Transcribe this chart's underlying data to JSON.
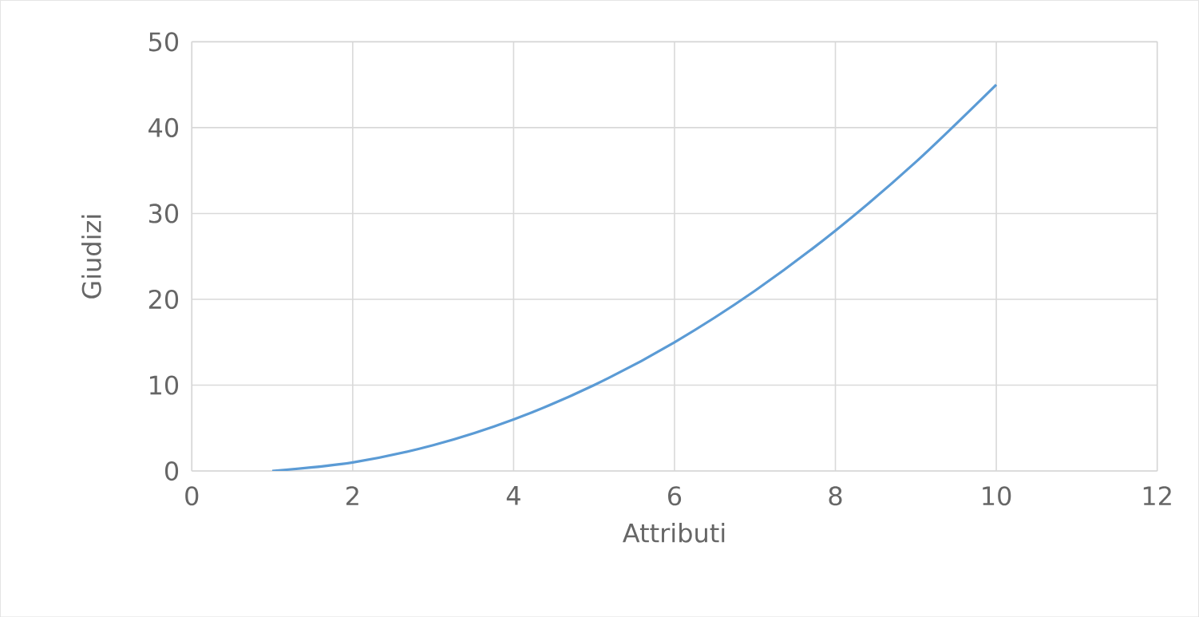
{
  "chart_data": {
    "type": "line",
    "xlabel": "Attributi",
    "ylabel": "Giudizi",
    "x": [
      1,
      2,
      3,
      4,
      5,
      6,
      7,
      8,
      9,
      10
    ],
    "series": [
      {
        "color": "#5b9bd5",
        "values": [
          0,
          1,
          3,
          6,
          10,
          15,
          21,
          28,
          36,
          45
        ]
      }
    ],
    "xlim": [
      0,
      12
    ],
    "ylim": [
      0,
      50
    ],
    "xticks": [
      0,
      2,
      4,
      6,
      8,
      10,
      12
    ],
    "yticks": [
      0,
      10,
      20,
      30,
      40,
      50
    ],
    "grid": true,
    "marker": "none",
    "line_style": "solid"
  }
}
